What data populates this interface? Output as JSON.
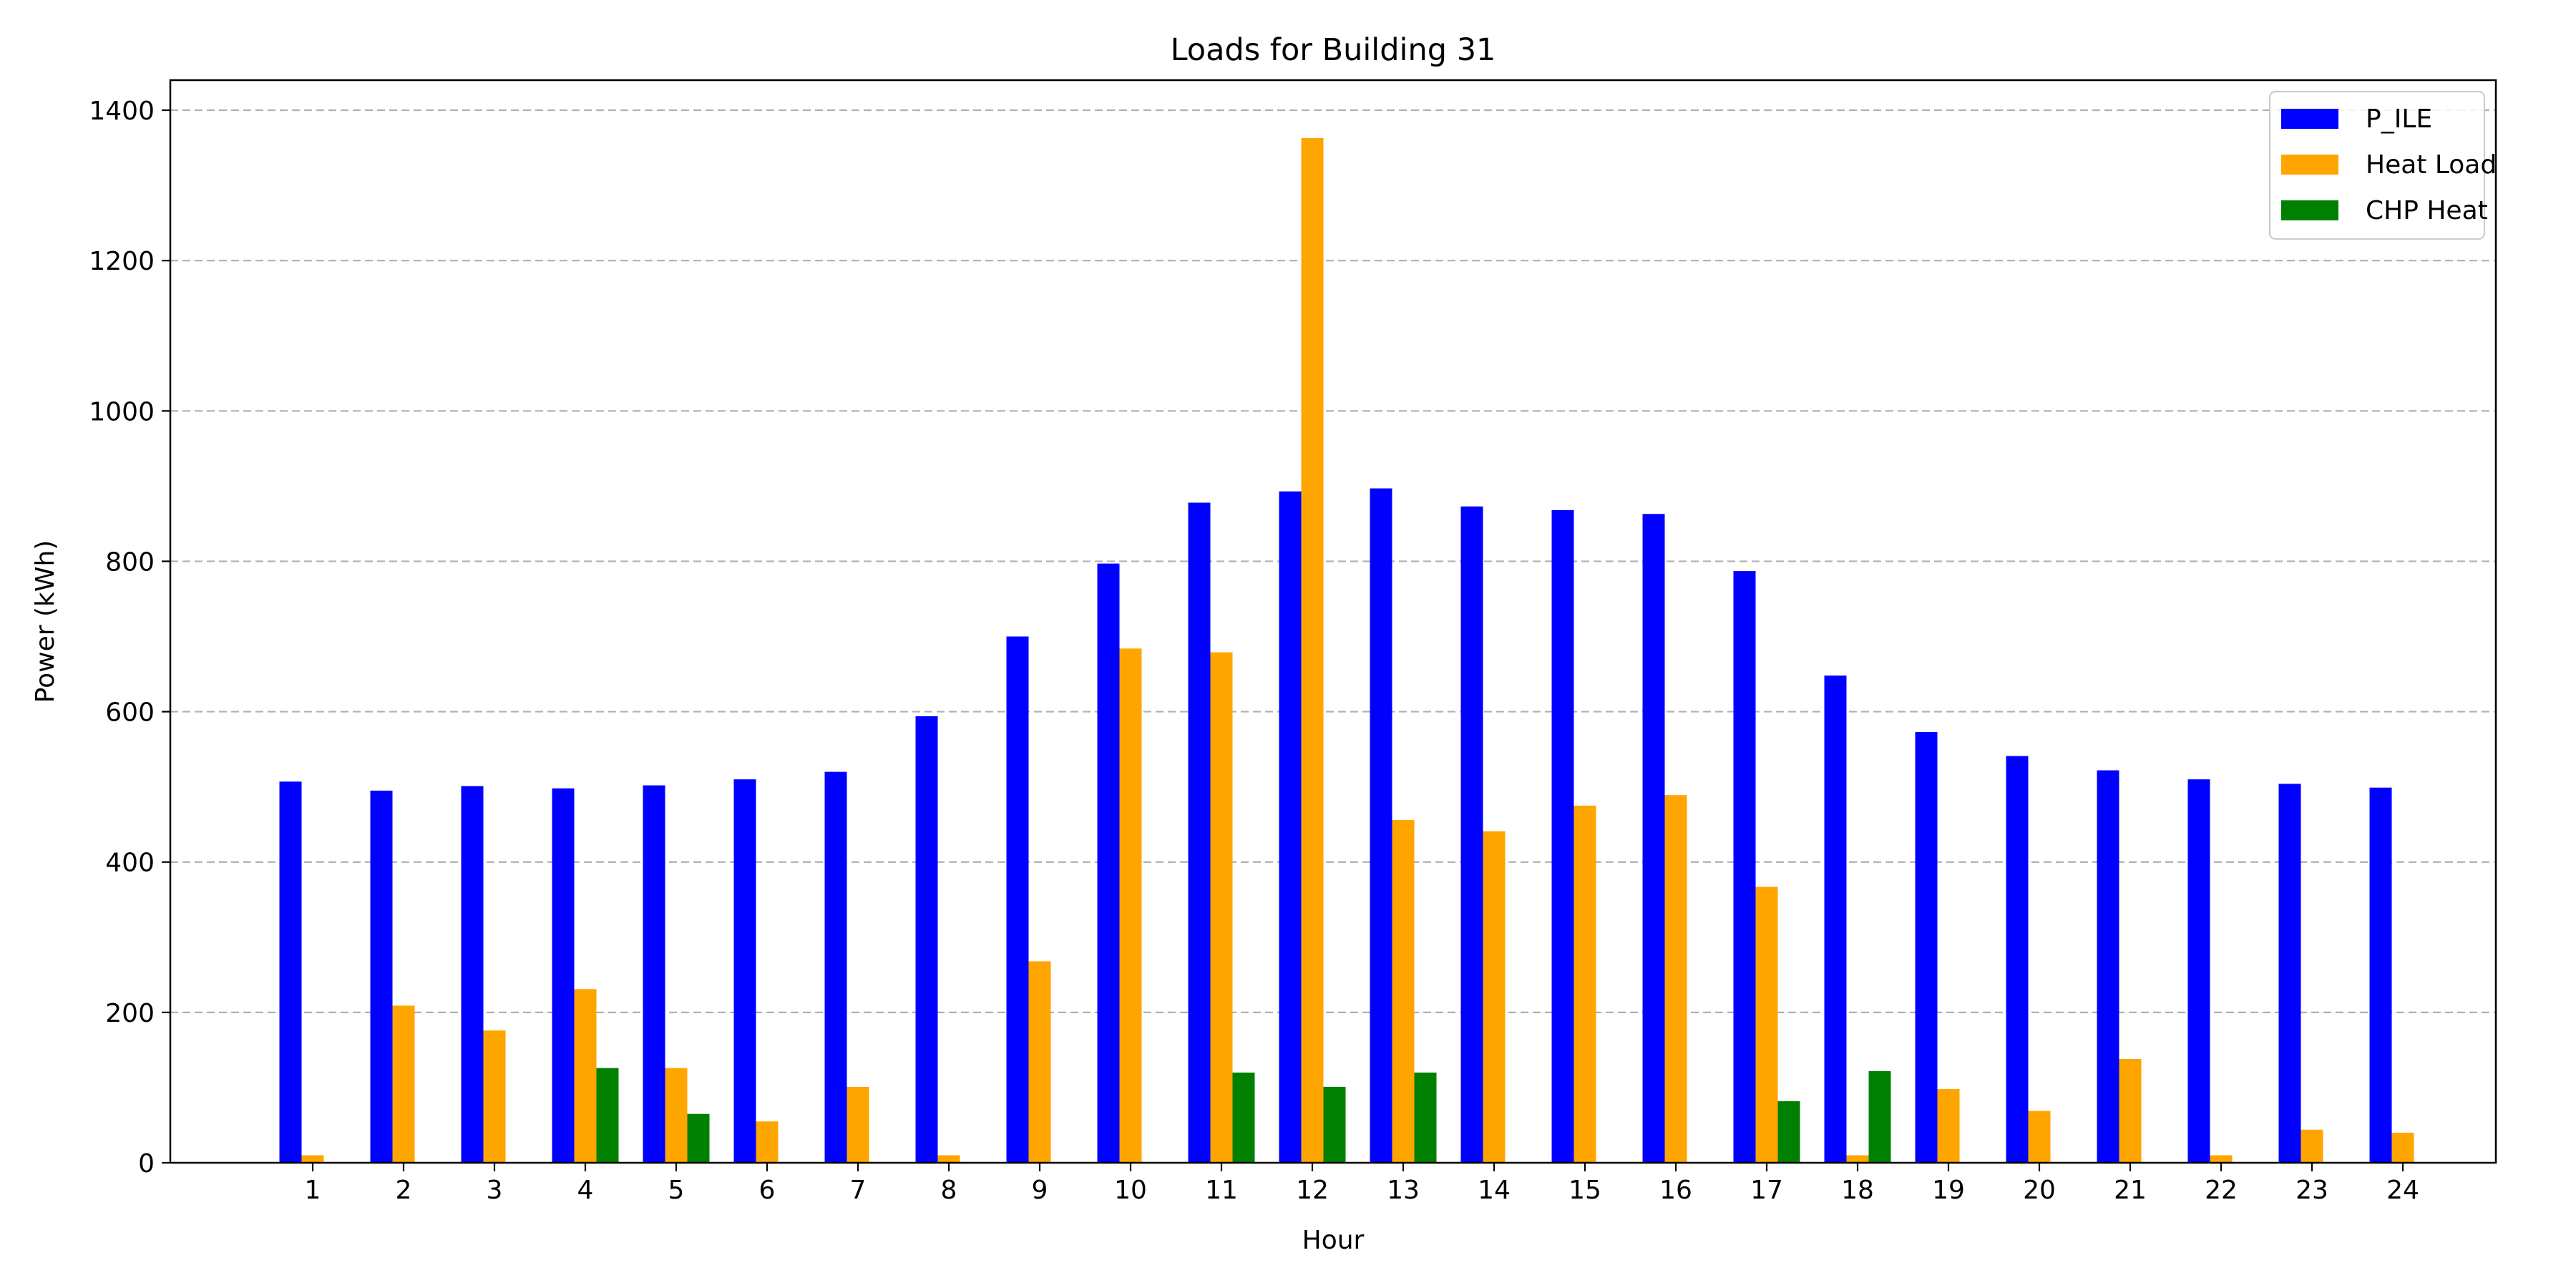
{
  "chart_data": {
    "type": "bar",
    "title": "Loads for Building 31",
    "xlabel": "Hour",
    "ylabel": "Power (kWh)",
    "ylim": [
      0,
      1440
    ],
    "yticks": [
      0,
      200,
      400,
      600,
      800,
      1000,
      1200,
      1400
    ],
    "grid": "horizontal dashed",
    "legend_position": "top-right",
    "categories": [
      "1",
      "2",
      "3",
      "4",
      "5",
      "6",
      "7",
      "8",
      "9",
      "10",
      "11",
      "12",
      "13",
      "14",
      "15",
      "16",
      "17",
      "18",
      "19",
      "20",
      "21",
      "22",
      "23",
      "24"
    ],
    "series": [
      {
        "name": "P_ILE",
        "color": "#0000ff",
        "values": [
          507,
          495,
          501,
          498,
          502,
          510,
          520,
          594,
          700,
          797,
          878,
          893,
          897,
          873,
          868,
          863,
          787,
          648,
          573,
          541,
          522,
          510,
          504,
          499
        ]
      },
      {
        "name": "Heat Load",
        "color": "#ffa500",
        "values": [
          10,
          209,
          176,
          231,
          126,
          55,
          101,
          10,
          268,
          684,
          679,
          1363,
          456,
          441,
          475,
          489,
          367,
          10,
          98,
          69,
          138,
          10,
          44,
          40
        ]
      },
      {
        "name": "CHP Heat",
        "color": "#008000",
        "values": [
          0,
          0,
          0,
          126,
          65,
          0,
          0,
          0,
          0,
          0,
          120,
          101,
          120,
          0,
          0,
          0,
          82,
          122,
          0,
          0,
          0,
          0,
          0,
          0
        ]
      }
    ]
  }
}
